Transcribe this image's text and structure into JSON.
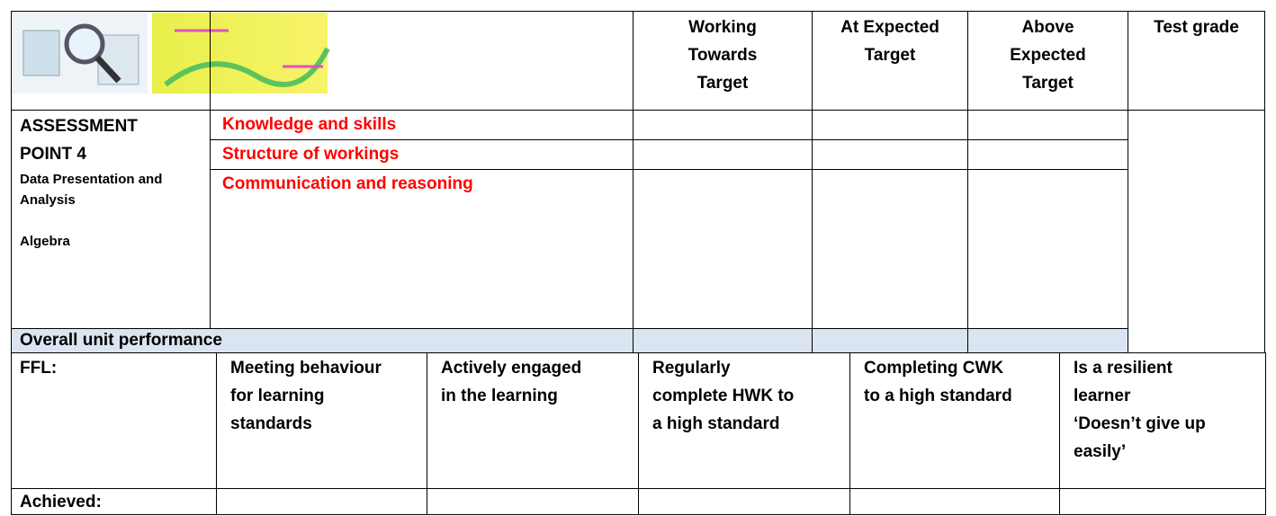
{
  "header": {
    "columns": [
      "Working Towards Target",
      "At Expected Target",
      "Above Expected Target",
      "Test grade"
    ]
  },
  "assessment": {
    "title": "ASSESSMENT POINT 4",
    "topics": [
      "Data Presentation and Analysis",
      "Algebra"
    ],
    "criteria": [
      "Knowledge and skills",
      "Structure of workings",
      "Communication and reasoning"
    ],
    "overall": "Overall unit performance"
  },
  "ffl": {
    "label": "FFL:",
    "items": [
      "Meeting behaviour for learning standards",
      "Actively engaged in the learning",
      "Regularly complete HWK to a high standard",
      "Completing CWK to a high standard",
      [
        "Is a resilient learner",
        "‘Doesn’t give up easily’"
      ]
    ],
    "achieved": "Achieved:"
  }
}
